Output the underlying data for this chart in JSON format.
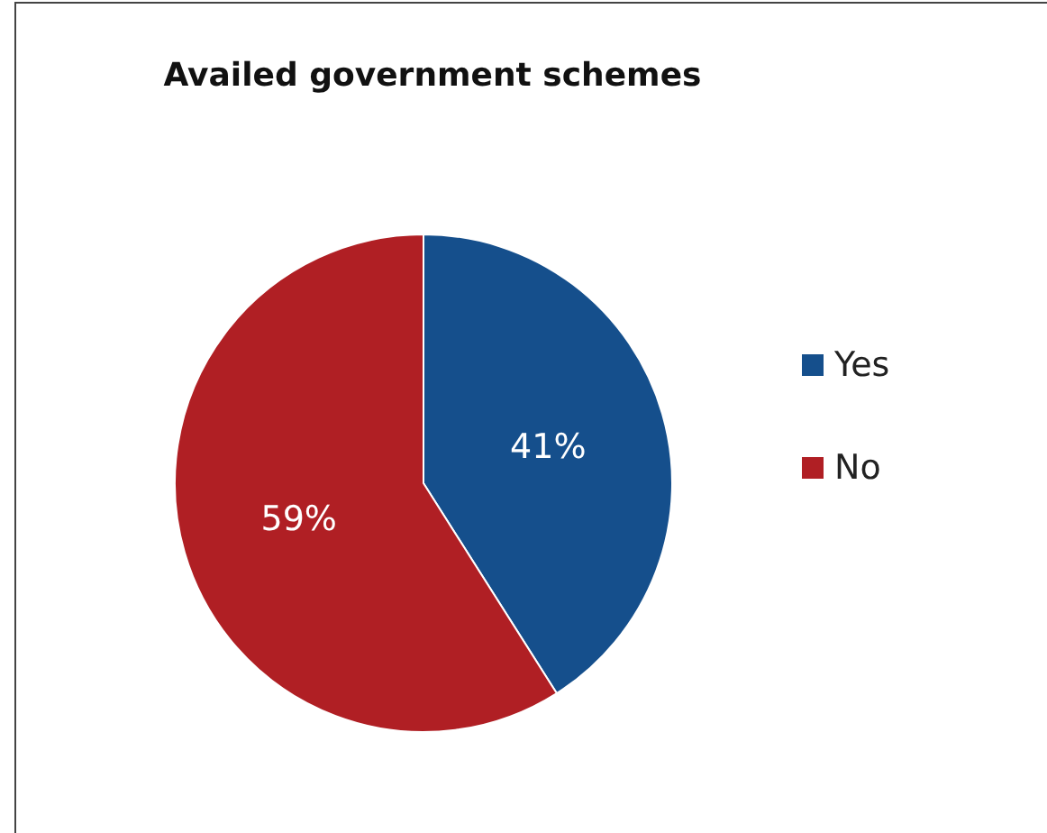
{
  "chart_data": {
    "type": "pie",
    "title": "Availed government schemes",
    "categories": [
      "Yes",
      "No"
    ],
    "values": [
      41,
      59
    ],
    "colors": [
      "#154f8c",
      "#b01f24"
    ],
    "value_labels": [
      "41%",
      "59%"
    ],
    "legend": "right"
  }
}
